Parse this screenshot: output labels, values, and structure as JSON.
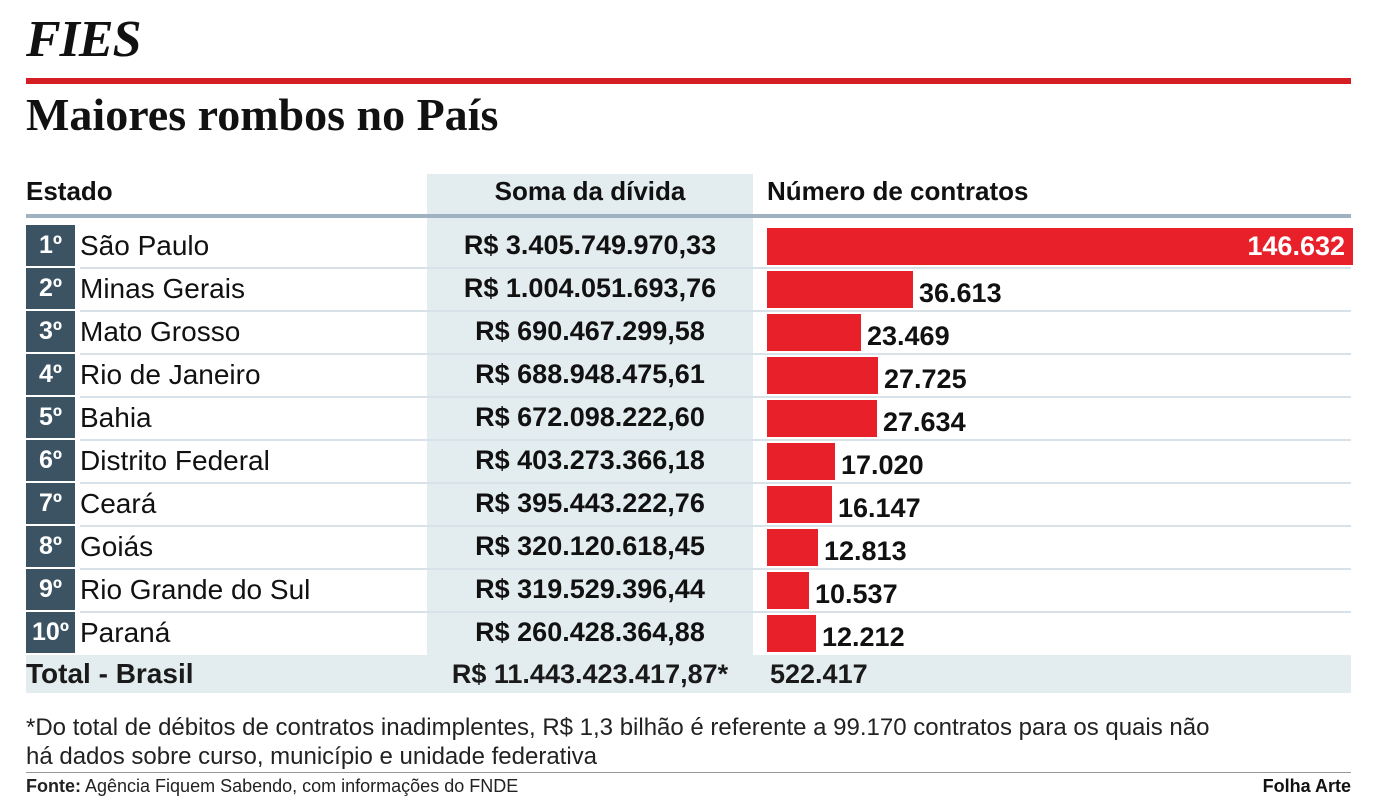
{
  "kicker": "FIES",
  "headline": "Maiores rombos no País",
  "colors": {
    "accent": "#d41e23",
    "bar": "#e8202a",
    "rank_bg": "#3b5363",
    "shade": "#e3ecee"
  },
  "chart_data": {
    "type": "bar",
    "columns": [
      "Estado",
      "Soma da dívida",
      "Número de contratos"
    ],
    "rows": [
      {
        "rank": "1º",
        "state": "São Paulo",
        "debt": "R$ 3.405.749.970,33",
        "contracts_label": "146.632",
        "contracts": 146632
      },
      {
        "rank": "2º",
        "state": "Minas Gerais",
        "debt": "R$ 1.004.051.693,76",
        "contracts_label": "36.613",
        "contracts": 36613
      },
      {
        "rank": "3º",
        "state": "Mato Grosso",
        "debt": "R$ 690.467.299,58",
        "contracts_label": "23.469",
        "contracts": 23469
      },
      {
        "rank": "4º",
        "state": "Rio de Janeiro",
        "debt": "R$ 688.948.475,61",
        "contracts_label": "27.725",
        "contracts": 27725
      },
      {
        "rank": "5º",
        "state": "Bahia",
        "debt": "R$ 672.098.222,60",
        "contracts_label": "27.634",
        "contracts": 27634
      },
      {
        "rank": "6º",
        "state": "Distrito Federal",
        "debt": "R$ 403.273.366,18",
        "contracts_label": "17.020",
        "contracts": 17020
      },
      {
        "rank": "7º",
        "state": "Ceará",
        "debt": "R$ 395.443.222,76",
        "contracts_label": "16.147",
        "contracts": 16147
      },
      {
        "rank": "8º",
        "state": "Goiás",
        "debt": "R$ 320.120.618,45",
        "contracts_label": "12.813",
        "contracts": 12813
      },
      {
        "rank": "9º",
        "state": "Rio Grande do Sul",
        "debt": "R$ 319.529.396,44",
        "contracts_label": "10.537",
        "contracts": 10537
      },
      {
        "rank": "10º",
        "state": "Paraná",
        "debt": "R$ 260.428.364,88",
        "contracts_label": "12.212",
        "contracts": 12212
      }
    ],
    "total": {
      "label": "Total - Brasil",
      "debt": "R$ 11.443.423.417,87*",
      "contracts": "522.417"
    }
  },
  "note": "*Do total de débitos de contratos inadimplentes, R$ 1,3 bilhão é referente a 99.170 contratos para os quais não há dados sobre curso, município e unidade federativa",
  "source_label": "Fonte:",
  "source_text": "Agência Fiquem Sabendo, com informações do FNDE",
  "credit": "Folha Arte"
}
